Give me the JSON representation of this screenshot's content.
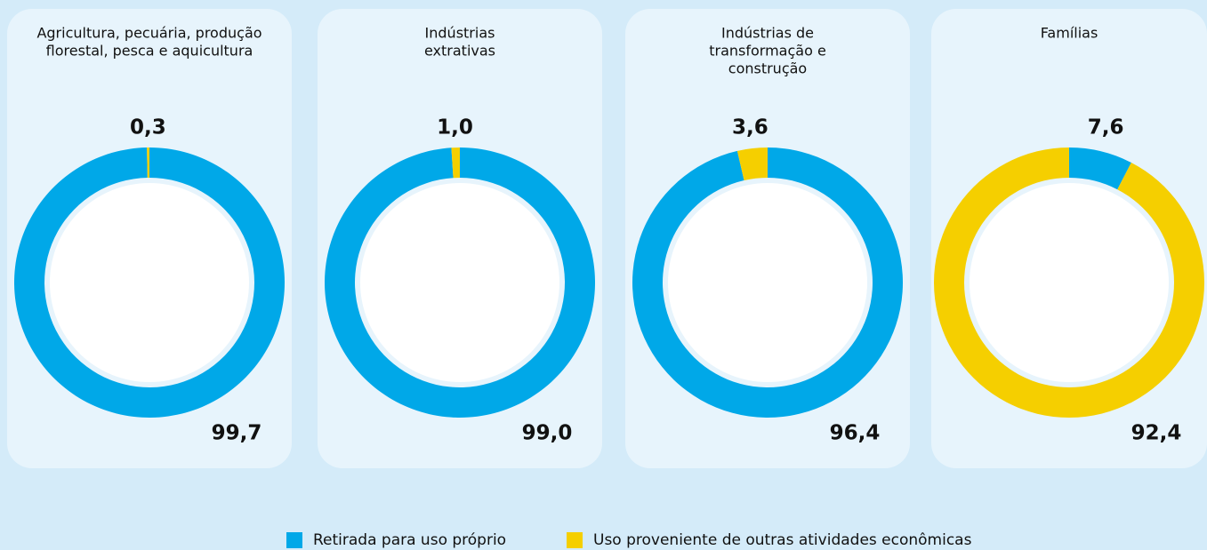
{
  "chart_data": [
    {
      "type": "donut",
      "title": [
        "Agricultura, pecuária, produção",
        "florestal, pesca e aquicultura"
      ],
      "values": [
        99.7,
        0.3
      ],
      "value_labels": [
        "99,7",
        "0,3"
      ]
    },
    {
      "type": "donut",
      "title": [
        "Indústrias",
        "extrativas"
      ],
      "values": [
        99.0,
        1.0
      ],
      "value_labels": [
        "99,0",
        "1,0"
      ]
    },
    {
      "type": "donut",
      "title": [
        "Indústrias de",
        "transformação e",
        "construção"
      ],
      "values": [
        96.4,
        3.6
      ],
      "value_labels": [
        "96,4",
        "3,6"
      ]
    },
    {
      "type": "donut",
      "title": [
        "Famílias"
      ],
      "values": [
        7.6,
        92.4
      ],
      "value_labels": [
        "7,6",
        "92,4"
      ]
    }
  ],
  "legend": {
    "categories": [
      "Retirada para uso próprio",
      "Uso proveniente de outras atividades econômicas"
    ],
    "colors": [
      "#00a8e8",
      "#f5cf00"
    ]
  }
}
